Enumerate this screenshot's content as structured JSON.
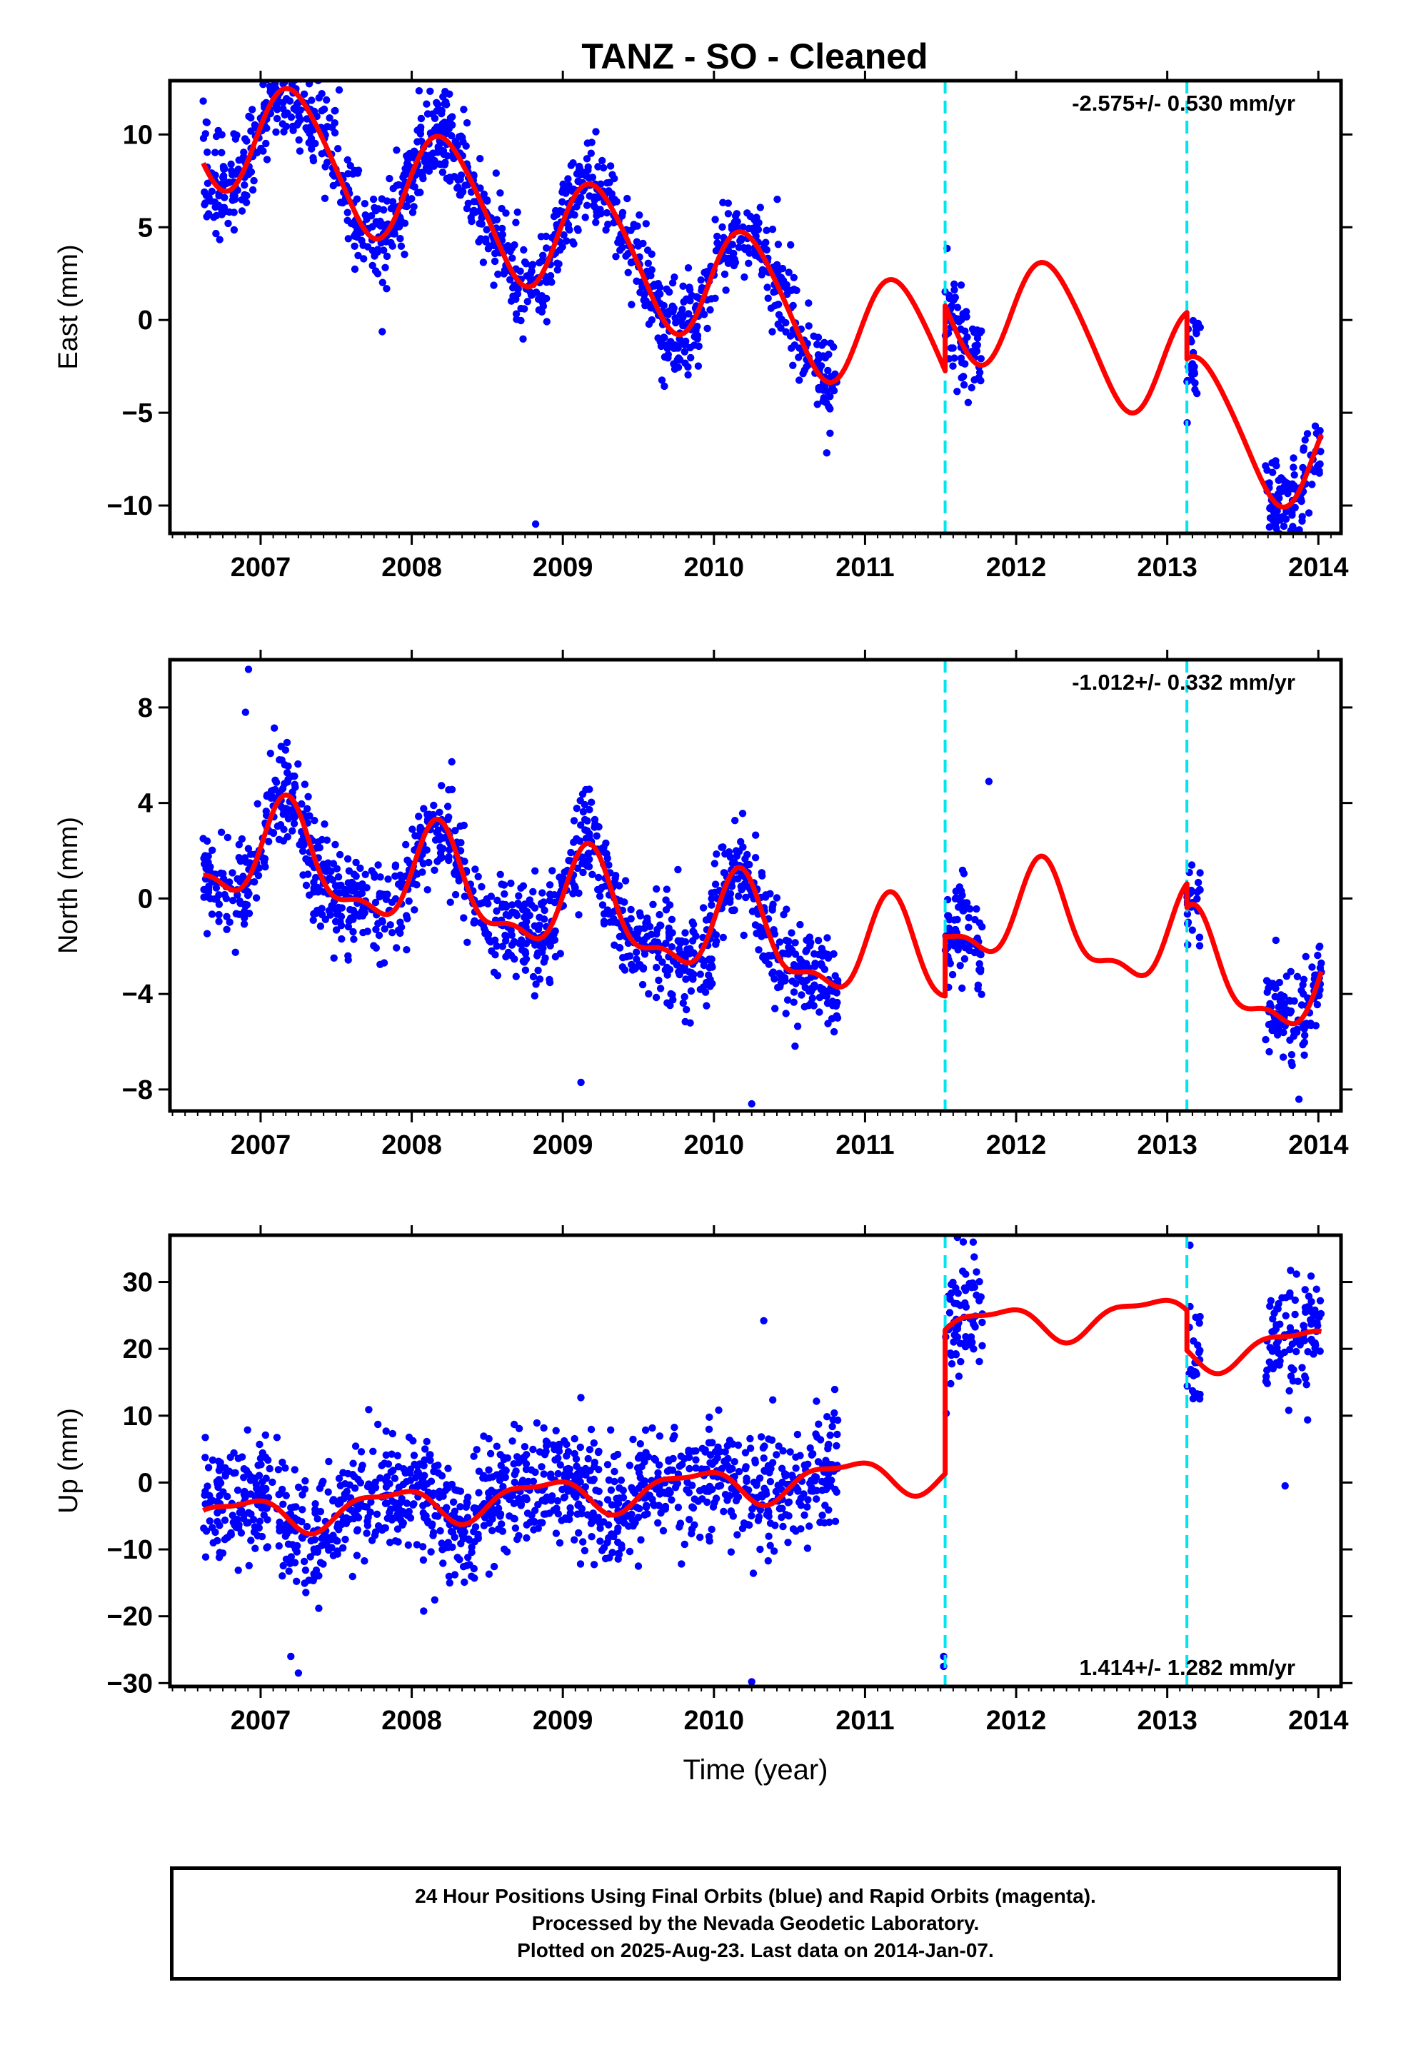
{
  "title": "TANZ  - SO - Cleaned",
  "colors": {
    "data_points": "#0000ff",
    "model_fit": "#ff0000",
    "event_lines": "#00e5ee",
    "axes": "#000000"
  },
  "chart_data": [
    {
      "type": "scatter",
      "name": "east",
      "ylabel": "East (mm)",
      "ylim": [
        -11.5,
        12.9
      ],
      "yticks": [
        10,
        5,
        0,
        -5,
        -10
      ],
      "ytick_labels": [
        "10",
        "5",
        "0",
        "−5",
        "−10"
      ],
      "xlim": [
        2006.4,
        2014.15
      ],
      "xticks": [
        2007,
        2008,
        2009,
        2010,
        2011,
        2012,
        2013,
        2014
      ],
      "rate_label": "-2.575+/- 0.530 mm/yr",
      "event_lines_x": [
        2011.53,
        2013.13
      ],
      "observation_segments": [
        [
          2006.62,
          2010.82
        ],
        [
          2011.53,
          2011.78
        ],
        [
          2013.13,
          2013.22
        ],
        [
          2013.65,
          2014.02
        ]
      ],
      "model": {
        "segments": [
          [
            2006.62,
            2011.53
          ],
          [
            2011.53,
            2013.13
          ],
          [
            2013.13,
            2014.02
          ]
        ],
        "offsets": [
          2.0,
          5.5,
          3.0
        ],
        "trend": -2.575,
        "ref_year": 2010,
        "annual": [
          3.2,
          0.5
        ],
        "semiannual": [
          0.3,
          0.2
        ]
      },
      "points": {
        "count": 1450,
        "scatter_sd": 1.3,
        "outliers": [
          [
            2008.82,
            -11.0
          ],
          [
            2007.52,
            12.4
          ],
          [
            2006.62,
            11.8
          ]
        ]
      }
    },
    {
      "type": "scatter",
      "name": "north",
      "ylabel": "North (mm)",
      "ylim": [
        -8.9,
        10.0
      ],
      "yticks": [
        8,
        4,
        0,
        -4,
        -8
      ],
      "ytick_labels": [
        "8",
        "4",
        "0",
        "−4",
        "−8"
      ],
      "xlim": [
        2006.4,
        2014.15
      ],
      "xticks": [
        2007,
        2008,
        2009,
        2010,
        2011,
        2012,
        2013,
        2014
      ],
      "rate_label": "-1.012+/- 0.332 mm/yr",
      "event_lines_x": [
        2011.53,
        2013.13
      ],
      "observation_segments": [
        [
          2006.62,
          2010.82
        ],
        [
          2011.53,
          2011.78
        ],
        [
          2013.13,
          2013.22
        ],
        [
          2013.65,
          2014.02
        ]
      ],
      "model": {
        "segments": [
          [
            2006.62,
            2011.53
          ],
          [
            2011.53,
            2013.13
          ],
          [
            2013.13,
            2014.02
          ]
        ],
        "offsets": [
          -1.3,
          1.2,
          0.2
        ],
        "trend": -1.012,
        "ref_year": 2010,
        "annual": [
          1.8,
          0.8
        ],
        "semiannual": [
          0.7,
          -0.4
        ]
      },
      "points": {
        "count": 1450,
        "scatter_sd": 1.05,
        "outliers": [
          [
            2006.92,
            9.6
          ],
          [
            2006.9,
            7.8
          ],
          [
            2010.25,
            -8.6
          ],
          [
            2011.82,
            4.9
          ],
          [
            2009.12,
            -7.7
          ]
        ]
      }
    },
    {
      "type": "scatter",
      "name": "up",
      "xlabel": "Time (year)",
      "ylabel": "Up (mm)",
      "ylim": [
        -30.5,
        37.0
      ],
      "yticks": [
        30,
        20,
        10,
        0,
        -10,
        -20,
        -30
      ],
      "ytick_labels": [
        "30",
        "20",
        "10",
        "0",
        "−10",
        "−20",
        "−30"
      ],
      "xlim": [
        2006.4,
        2014.15
      ],
      "xticks": [
        2007,
        2008,
        2009,
        2010,
        2011,
        2012,
        2013,
        2014
      ],
      "rate_label": "1.414+/- 1.282 mm/yr",
      "event_lines_x": [
        2011.53,
        2013.13
      ],
      "observation_segments": [
        [
          2006.62,
          2010.82
        ],
        [
          2011.53,
          2011.78
        ],
        [
          2013.13,
          2013.22
        ],
        [
          2013.65,
          2014.02
        ]
      ],
      "model": {
        "segments": [
          [
            2006.62,
            2011.53
          ],
          [
            2011.53,
            2013.13
          ],
          [
            2013.13,
            2014.02
          ]
        ],
        "offsets": [
          -0.5,
          21.0,
          15.0
        ],
        "trend": 1.414,
        "ref_year": 2010,
        "annual": [
          -2.0,
          1.5
        ],
        "semiannual": [
          0.8,
          0.5
        ]
      },
      "points": {
        "count": 1450,
        "scatter_sd": 4.5,
        "outliers": [
          [
            2011.52,
            -26.0
          ],
          [
            2011.52,
            -27.5
          ],
          [
            2010.25,
            -29.8
          ],
          [
            2010.33,
            24.2
          ],
          [
            2013.15,
            35.5
          ],
          [
            2011.65,
            36.0
          ],
          [
            2013.78,
            -0.5
          ],
          [
            2007.25,
            -28.5
          ],
          [
            2007.2,
            -26.0
          ]
        ]
      }
    }
  ],
  "footer": {
    "line1": "24 Hour Positions Using Final Orbits (blue) and Rapid Orbits (magenta).",
    "line2": "Processed by the Nevada Geodetic Laboratory.",
    "line3": "Plotted on 2025-Aug-23. Last data on 2014-Jan-07."
  }
}
